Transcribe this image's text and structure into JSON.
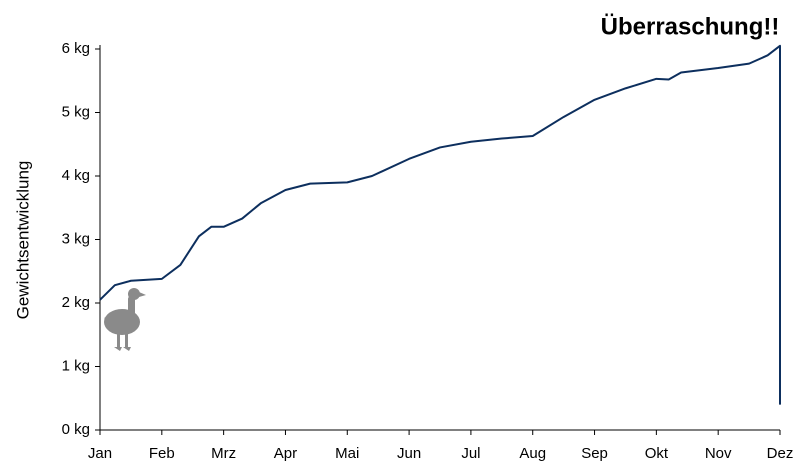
{
  "chart_data": {
    "type": "line",
    "title": "Überraschung!!",
    "y_label": "Gewichtsentwicklung",
    "x": [
      0,
      0.24,
      0.5,
      1.0,
      1.3,
      1.6,
      1.8,
      2.0,
      2.3,
      2.6,
      3.0,
      3.4,
      4.0,
      4.4,
      5.0,
      5.5,
      6.0,
      6.5,
      7.0,
      7.5,
      8.0,
      8.5,
      9.0,
      9.2,
      9.4,
      10.0,
      10.5,
      10.8,
      11.0,
      11.0
    ],
    "series": [
      {
        "color": "#0d2f5e",
        "values": [
          2.05,
          2.28,
          2.35,
          2.38,
          2.6,
          3.05,
          3.2,
          3.2,
          3.33,
          3.57,
          3.78,
          3.88,
          3.9,
          4.0,
          4.27,
          4.45,
          4.54,
          4.59,
          4.63,
          4.93,
          5.2,
          5.38,
          5.53,
          5.52,
          5.63,
          5.7,
          5.77,
          5.9,
          6.05,
          0.4
        ]
      }
    ],
    "xlim": [
      0,
      11
    ],
    "xticks": [
      {
        "value": 0,
        "label": "Jan"
      },
      {
        "value": 1,
        "label": "Feb"
      },
      {
        "value": 2,
        "label": "Mrz"
      },
      {
        "value": 3,
        "label": "Apr"
      },
      {
        "value": 4,
        "label": "Mai"
      },
      {
        "value": 5,
        "label": "Jun"
      },
      {
        "value": 6,
        "label": "Jul"
      },
      {
        "value": 7,
        "label": "Aug"
      },
      {
        "value": 8,
        "label": "Sep"
      },
      {
        "value": 9,
        "label": "Okt"
      },
      {
        "value": 10,
        "label": "Nov"
      },
      {
        "value": 11,
        "label": "Dez"
      }
    ],
    "ylim": [
      0,
      6
    ],
    "yticks": [
      {
        "value": 0,
        "label": "0 kg"
      },
      {
        "value": 1,
        "label": "1 kg"
      },
      {
        "value": 2,
        "label": "2 kg"
      },
      {
        "value": 3,
        "label": "3 kg"
      },
      {
        "value": 4,
        "label": "4 kg"
      },
      {
        "value": 5,
        "label": "5 kg"
      },
      {
        "value": 6,
        "label": "6 kg"
      }
    ],
    "grid": false
  }
}
